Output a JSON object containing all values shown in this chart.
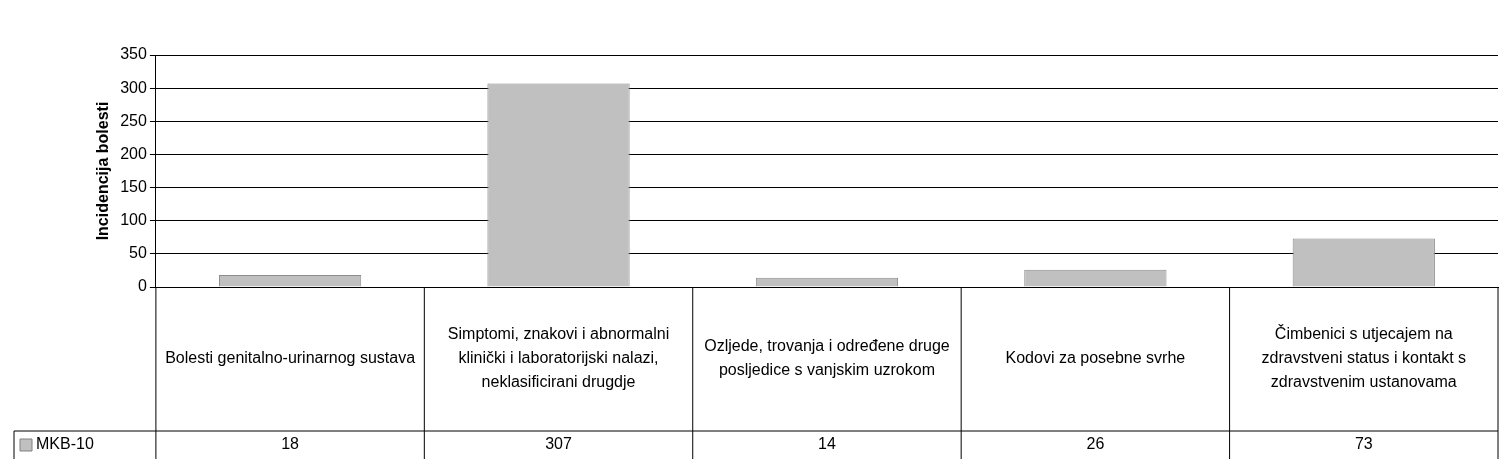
{
  "chart_data": {
    "type": "bar",
    "ylabel": "Incidencija bolesti",
    "categories": [
      "Bolesti genitalno-urinarnog sustava",
      "Simptomi, znakovi i abnormalni klinički i laboratorijski nalazi, neklasificirani drugdje",
      "Ozljede, trovanja i određene druge posljedice s vanjskim uzrokom",
      "Kodovi za posebne svrhe",
      "Čimbenici s utjecajem na zdravstveni status i kontakt s zdravstvenim ustanovama"
    ],
    "series": [
      {
        "name": "MKB-10",
        "color": "#c0c0c0",
        "values": [
          18,
          307,
          14,
          26,
          73
        ]
      }
    ],
    "ylim": [
      0,
      350
    ],
    "yticks": [
      0,
      50,
      100,
      150,
      200,
      250,
      300,
      350
    ],
    "grid": "y",
    "data_labels": true,
    "legend": "bottom left"
  }
}
